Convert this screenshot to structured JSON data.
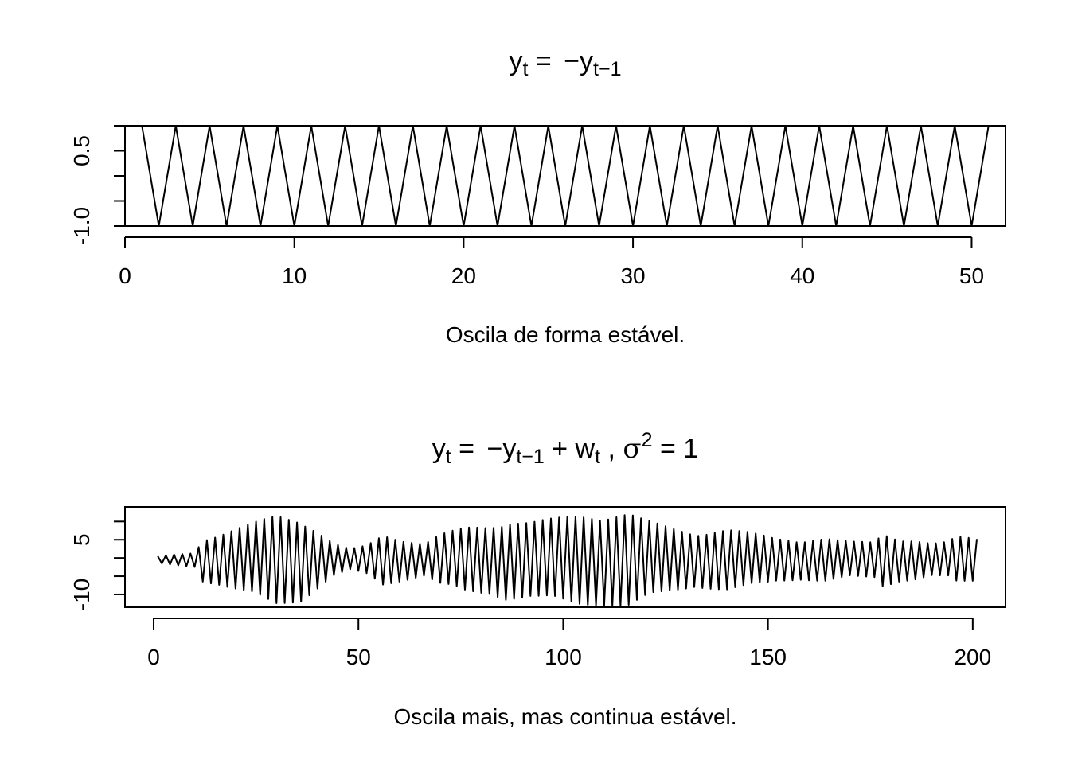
{
  "chart_data": [
    {
      "type": "line",
      "title": {
        "lhs_main": "y",
        "lhs_sub": "t",
        "eq": " = ",
        "rhs_minus": "−",
        "rhs_main": "y",
        "rhs_sub": "t−1"
      },
      "xlabel": "Oscila de forma estável.",
      "ylabel": "",
      "xlim": [
        0,
        52
      ],
      "ylim": [
        -1,
        1
      ],
      "xticks": [
        0,
        10,
        20,
        30,
        40,
        50
      ],
      "xtick_labels": [
        "0",
        "10",
        "20",
        "30",
        "40",
        "50"
      ],
      "yticks": [
        -1.0,
        -0.5,
        0.0,
        0.5,
        1.0
      ],
      "ytick_labels": [
        "-1.0",
        "",
        "",
        "0.5",
        ""
      ],
      "x_start": 1,
      "values": [
        1,
        -1,
        1,
        -1,
        1,
        -1,
        1,
        -1,
        1,
        -1,
        1,
        -1,
        1,
        -1,
        1,
        -1,
        1,
        -1,
        1,
        -1,
        1,
        -1,
        1,
        -1,
        1,
        -1,
        1,
        -1,
        1,
        -1,
        1,
        -1,
        1,
        -1,
        1,
        -1,
        1,
        -1,
        1,
        -1,
        1,
        -1,
        1,
        -1,
        1,
        -1,
        1,
        -1,
        1,
        -1,
        1
      ],
      "grid": false,
      "color": "#000000"
    },
    {
      "type": "line",
      "title": {
        "lhs_main": "y",
        "lhs_sub": "t",
        "eq": " = ",
        "rhs_minus": "−",
        "rhs_main": "y",
        "rhs_sub": "t−1",
        "plus": " + ",
        "noise_main": "w",
        "noise_sub": "t",
        "sep": " ,  ",
        "sigma": "σ",
        "sigma_sup": "2",
        "sigma_val": " = 1"
      },
      "xlabel": "Oscila mais, mas continua estável.",
      "ylabel": "",
      "xlim": [
        -7,
        208
      ],
      "ylim": [
        -13.5,
        14
      ],
      "xticks": [
        0,
        50,
        100,
        150,
        200
      ],
      "xtick_labels": [
        "0",
        "50",
        "100",
        "150",
        "200"
      ],
      "yticks": [
        -10,
        -5,
        0,
        5,
        10
      ],
      "ytick_labels": [
        "-10",
        "",
        "",
        "5",
        ""
      ],
      "x_start": 1,
      "envelope": [
        [
          1,
          1.0
        ],
        [
          5,
          1.5
        ],
        [
          10,
          2.0
        ],
        [
          12,
          6.0
        ],
        [
          16,
          7.0
        ],
        [
          20,
          8.5
        ],
        [
          25,
          10.5
        ],
        [
          30,
          12.5
        ],
        [
          36,
          11.5
        ],
        [
          40,
          8.0
        ],
        [
          44,
          4.5
        ],
        [
          48,
          3.0
        ],
        [
          52,
          4.0
        ],
        [
          56,
          7.0
        ],
        [
          62,
          5.5
        ],
        [
          66,
          4.5
        ],
        [
          70,
          7.0
        ],
        [
          76,
          9.0
        ],
        [
          82,
          9.5
        ],
        [
          86,
          11.0
        ],
        [
          92,
          10.5
        ],
        [
          98,
          11.5
        ],
        [
          104,
          12.5
        ],
        [
          110,
          12.5
        ],
        [
          116,
          13.0
        ],
        [
          120,
          11.0
        ],
        [
          126,
          9.0
        ],
        [
          132,
          7.5
        ],
        [
          140,
          8.5
        ],
        [
          146,
          7.5
        ],
        [
          152,
          6.0
        ],
        [
          158,
          5.5
        ],
        [
          164,
          6.0
        ],
        [
          170,
          5.0
        ],
        [
          176,
          5.0
        ],
        [
          178,
          7.5
        ],
        [
          182,
          6.0
        ],
        [
          186,
          5.5
        ],
        [
          190,
          4.5
        ],
        [
          194,
          5.0
        ],
        [
          196,
          6.5
        ],
        [
          201,
          6.0
        ]
      ],
      "offset": -0.5,
      "grid": false,
      "color": "#000000"
    }
  ]
}
